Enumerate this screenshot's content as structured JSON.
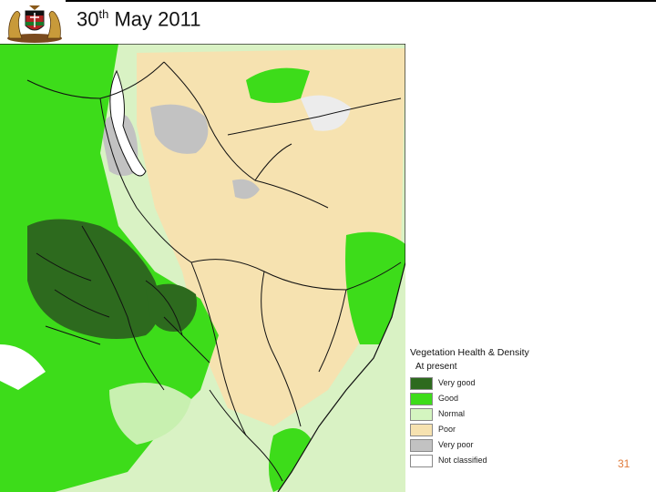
{
  "header": {
    "title_prefix": "30",
    "title_sup": "th",
    "title_rest": " May 2011"
  },
  "map": {
    "icon": "vegetation-map",
    "colors": {
      "very_good": "#2d6a1e",
      "good": "#3ddc1a",
      "normal": "#c8f0b0",
      "poor": "#f6e2b0",
      "very_poor": "#c2c2c2",
      "not_classified": "#ffffff",
      "boundary": "#111111"
    }
  },
  "legend": {
    "title": "Vegetation Health & Density",
    "subtitle": "At present",
    "items": [
      {
        "label": "Very good",
        "color": "#2d6a1e"
      },
      {
        "label": "Good",
        "color": "#3ddc1a"
      },
      {
        "label": "Normal",
        "color": "#d4f5c0"
      },
      {
        "label": "Poor",
        "color": "#f6e2b0"
      },
      {
        "label": "Very poor",
        "color": "#c2c2c2"
      },
      {
        "label": "Not classified",
        "color": "#ffffff"
      }
    ]
  },
  "footer": {
    "page_number": "31"
  }
}
